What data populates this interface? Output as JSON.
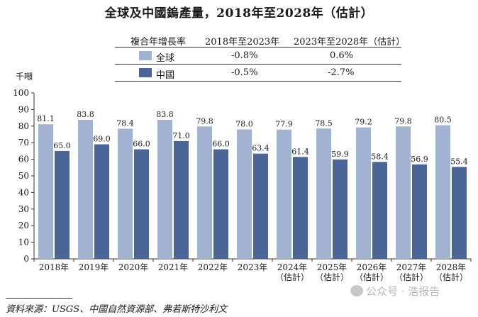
{
  "chart_data": {
    "type": "bar",
    "title": "全球及中國鎢產量，2018年至2028年（估計）",
    "ylabel": "千噸",
    "ylim": [
      0,
      100
    ],
    "yticks": [
      0,
      10,
      20,
      30,
      40,
      50,
      60,
      70,
      80,
      90,
      100
    ],
    "categories": [
      [
        "2018年"
      ],
      [
        "2019年"
      ],
      [
        "2020年"
      ],
      [
        "2021年"
      ],
      [
        "2022年"
      ],
      [
        "2023年"
      ],
      [
        "2024年",
        "（估計）"
      ],
      [
        "2025年",
        "（估計）"
      ],
      [
        "2026年",
        "（估計）"
      ],
      [
        "2027年",
        "（估計）"
      ],
      [
        "2028年",
        "（估計）"
      ]
    ],
    "series": [
      {
        "name": "全球",
        "color": "#a2b3d1",
        "values": [
          81.1,
          83.8,
          78.4,
          83.8,
          79.8,
          78.0,
          77.9,
          78.5,
          79.2,
          79.8,
          80.5
        ],
        "labels": [
          "81.1",
          "83.8",
          "78.4",
          "83.8",
          "79.8",
          "78.0",
          "77.9",
          "78.5",
          "79.2",
          "79.8",
          "80.5"
        ]
      },
      {
        "name": "中國",
        "color": "#4a6597",
        "values": [
          65.0,
          69.0,
          66.0,
          71.0,
          66.0,
          63.4,
          61.4,
          59.9,
          58.4,
          56.9,
          55.4
        ],
        "labels": [
          "65.0",
          "69.0",
          "66.0",
          "71.0",
          "66.0",
          "63.4",
          "61.4",
          "59.9",
          "58.4",
          "56.9",
          "55.4"
        ]
      }
    ],
    "legend_table": {
      "header": [
        "複合年增長率",
        "2018年至2023年",
        "2023年至2028年（估計）"
      ],
      "rows": [
        {
          "series": "全球",
          "cagr_2018_2023": "-0.8%",
          "cagr_2023_2028": "0.6%"
        },
        {
          "series": "中國",
          "cagr_2018_2023": "-0.5%",
          "cagr_2023_2028": "-2.7%"
        }
      ]
    },
    "grid": false,
    "legend_position": "top"
  },
  "source": "資料來源：USGS、中國自然資源部、弗若斯特沙利文",
  "watermark": "公众号 · 浩报告"
}
